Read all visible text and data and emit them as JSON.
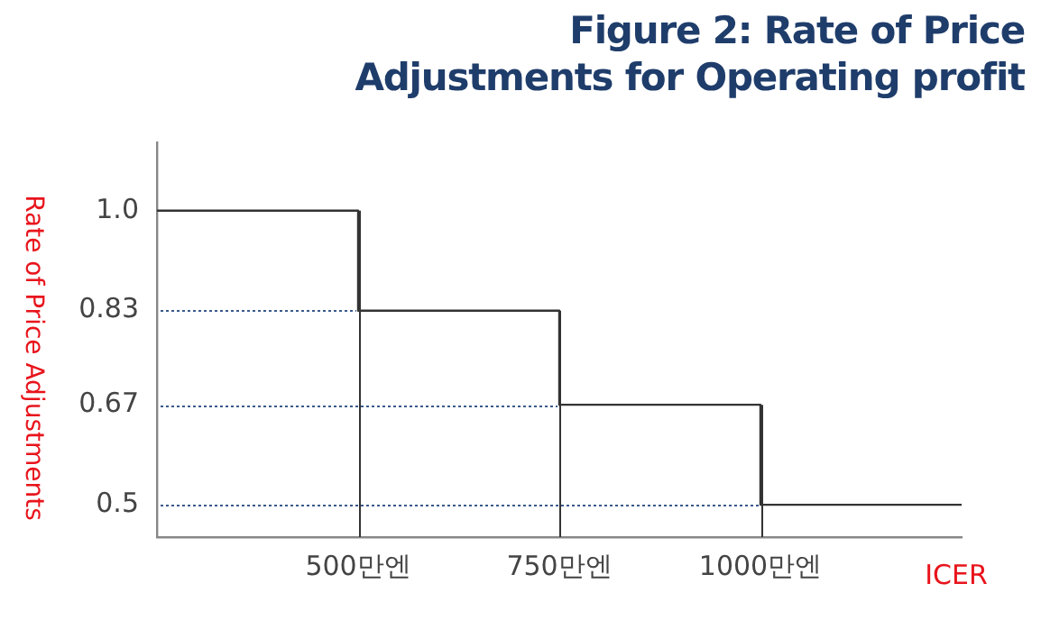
{
  "chart_data": {
    "type": "step",
    "title": "Figure 2: Rate of Price Adjustments for Operating profit",
    "xlabel": "ICER",
    "ylabel": "Rate of Price Adjustments",
    "x": [
      250,
      500,
      750,
      1000,
      1250
    ],
    "values": [
      1.0,
      0.83,
      0.67,
      0.5,
      0.5
    ],
    "color": "#333333",
    "marker": "none",
    "xlim": [
      250,
      1250
    ],
    "xticks": [
      {
        "value": 500,
        "label": "500만엔"
      },
      {
        "value": 750,
        "label": "750만엔"
      },
      {
        "value": 1000,
        "label": "1000만엔"
      }
    ],
    "ylim": [
      0.445,
      1.116
    ],
    "yticks": [
      {
        "value": 1.0,
        "label": "1.0"
      },
      0.83,
      0.67,
      0.5
    ],
    "ref_lines": [
      {
        "axis": "x",
        "value": 500,
        "color": "#333333",
        "line_style": "solid"
      },
      {
        "axis": "x",
        "value": 750,
        "color": "#333333",
        "line_style": "solid"
      },
      {
        "axis": "x",
        "value": 1000,
        "color": "#333333",
        "line_style": "solid"
      },
      {
        "axis": "y",
        "value": 0.83,
        "color": "#3a5a8c",
        "line_style": "dotted"
      },
      {
        "axis": "y",
        "value": 0.67,
        "color": "#3a5a8c",
        "line_style": "dotted"
      },
      {
        "axis": "y",
        "value": 0.5,
        "color": "#3a5a8c",
        "line_style": "dotted"
      }
    ]
  }
}
